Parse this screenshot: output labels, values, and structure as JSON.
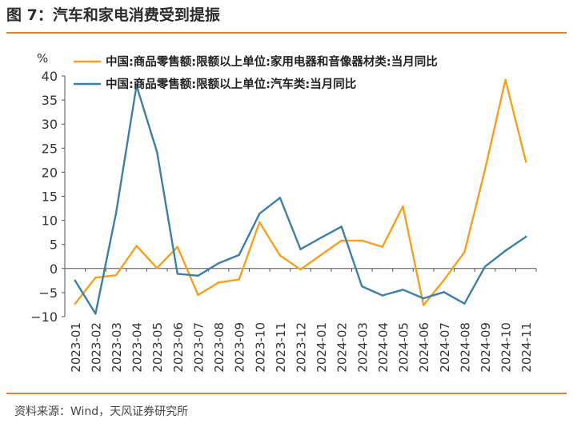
{
  "header": {
    "title": "图 7：汽车和家电消费受到提振"
  },
  "footer": {
    "source": "资料来源：Wind，天风证券研究所"
  },
  "chart_data": {
    "type": "line",
    "title": "图 7：汽车和家电消费受到提振",
    "ylabel": "%",
    "xlabel": "",
    "ylim": [
      -10,
      40
    ],
    "yticks": [
      40,
      35,
      30,
      25,
      20,
      15,
      10,
      5,
      0,
      -5,
      -10
    ],
    "ytick_labels": [
      "40",
      "35",
      "30",
      "25",
      "20",
      "15",
      "10",
      "5",
      "0",
      "−5",
      "−10"
    ],
    "grid": false,
    "legend_position": "top",
    "categories": [
      "2023-01",
      "2023-02",
      "2023-03",
      "2023-04",
      "2023-05",
      "2023-06",
      "2023-07",
      "2023-08",
      "2023-09",
      "2023-10",
      "2023-11",
      "2023-12",
      "2024-01",
      "2024-02",
      "2024-03",
      "2024-04",
      "2024-05",
      "2024-06",
      "2024-07",
      "2024-08",
      "2024-09",
      "2024-10",
      "2024-11"
    ],
    "series": [
      {
        "name": "中国:商品零售额:限额以上单位:家用电器和音像器材类:当月同比",
        "color": "#f4a020",
        "values": [
          -7.3,
          -1.9,
          -1.4,
          4.7,
          0.1,
          4.5,
          -5.5,
          -2.9,
          -2.3,
          9.6,
          2.7,
          -0.2,
          2.8,
          5.8,
          5.8,
          4.5,
          12.9,
          -7.6,
          -2.4,
          3.4,
          20.5,
          39.2,
          22.2
        ]
      },
      {
        "name": "中国:商品零售额:限额以上单位:汽车类:当月同比",
        "color": "#3f7fa6",
        "values": [
          -2.5,
          -9.4,
          11.5,
          38.0,
          24.2,
          -1.1,
          -1.5,
          1.1,
          2.8,
          11.4,
          14.7,
          4.0,
          6.4,
          8.7,
          -3.7,
          -5.6,
          -4.4,
          -6.2,
          -4.9,
          -7.3,
          0.4,
          3.7,
          6.6
        ]
      }
    ]
  }
}
